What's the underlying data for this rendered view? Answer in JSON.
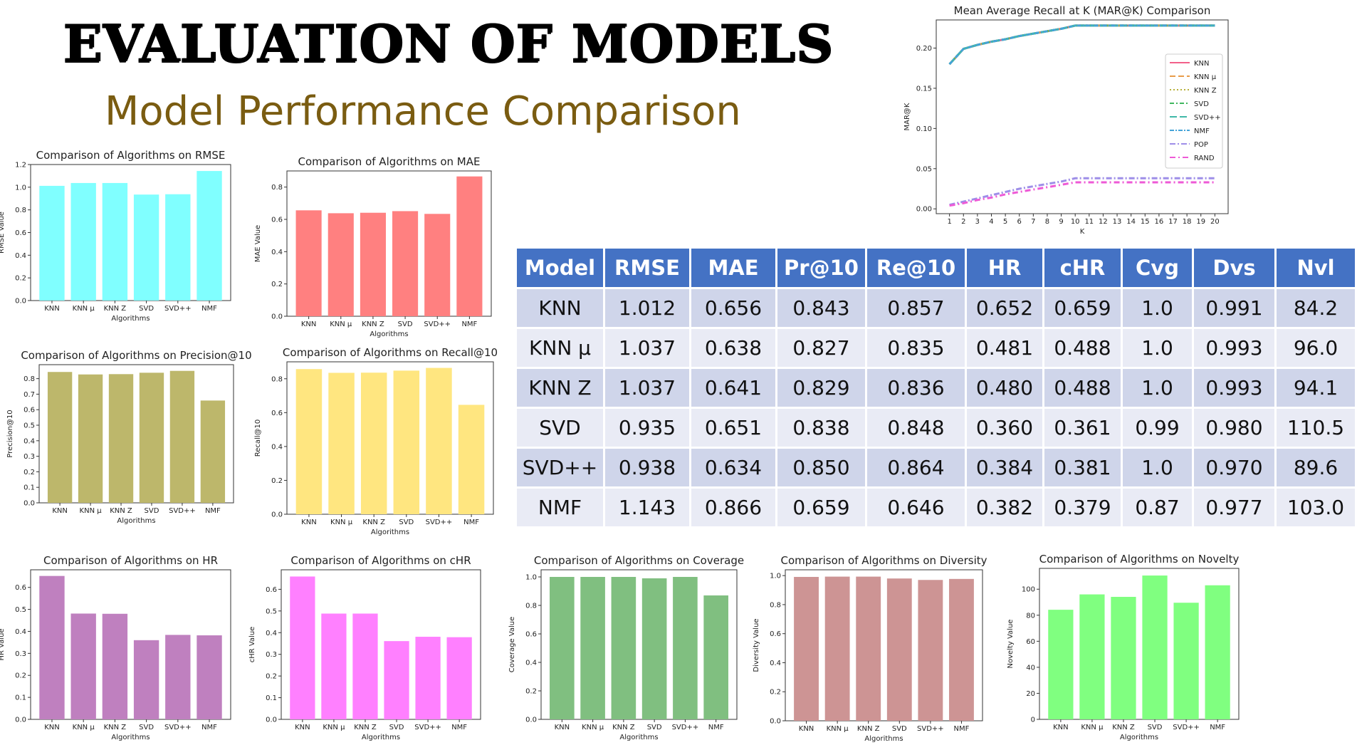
{
  "header": {
    "title": "EVALUATION OF MODELS",
    "subtitle": "Model Performance Comparison"
  },
  "table": {
    "columns": [
      "Model",
      "RMSE",
      "MAE",
      "Pr@10",
      "Re@10",
      "HR",
      "cHR",
      "Cvg",
      "Dvs",
      "Nvl"
    ],
    "rows": [
      [
        "KNN",
        "1.012",
        "0.656",
        "0.843",
        "0.857",
        "0.652",
        "0.659",
        "1.0",
        "0.991",
        "84.2"
      ],
      [
        "KNN μ",
        "1.037",
        "0.638",
        "0.827",
        "0.835",
        "0.481",
        "0.488",
        "1.0",
        "0.993",
        "96.0"
      ],
      [
        "KNN Z",
        "1.037",
        "0.641",
        "0.829",
        "0.836",
        "0.480",
        "0.488",
        "1.0",
        "0.993",
        "94.1"
      ],
      [
        "SVD",
        "0.935",
        "0.651",
        "0.838",
        "0.848",
        "0.360",
        "0.361",
        "0.99",
        "0.980",
        "110.5"
      ],
      [
        "SVD++",
        "0.938",
        "0.634",
        "0.850",
        "0.864",
        "0.384",
        "0.381",
        "1.0",
        "0.970",
        "89.6"
      ],
      [
        "NMF",
        "1.143",
        "0.866",
        "0.659",
        "0.646",
        "0.382",
        "0.379",
        "0.87",
        "0.977",
        "103.0"
      ]
    ],
    "colors": {
      "header_bg": "#4472c4",
      "row_dark": "#cfd5ea",
      "row_light": "#e9ebf5"
    }
  },
  "chart_data": [
    {
      "id": "rmse",
      "type": "bar",
      "title": "Comparison of Algorithms on RMSE",
      "xlabel": "Algorithms",
      "ylabel": "RMSE Value",
      "categories": [
        "KNN",
        "KNN μ",
        "KNN Z",
        "SVD",
        "SVD++",
        "NMF"
      ],
      "values": [
        1.012,
        1.037,
        1.037,
        0.935,
        0.938,
        1.143
      ],
      "ylim": [
        0,
        1.2
      ],
      "yticks": [
        "0.0",
        "0.2",
        "0.4",
        "0.6",
        "0.8",
        "1.0",
        "1.2"
      ],
      "color": "#80ffff"
    },
    {
      "id": "mae",
      "type": "bar",
      "title": "Comparison of Algorithms on MAE",
      "xlabel": "Algorithms",
      "ylabel": "MAE Value",
      "categories": [
        "KNN",
        "KNN μ",
        "KNN Z",
        "SVD",
        "SVD++",
        "NMF"
      ],
      "values": [
        0.656,
        0.638,
        0.641,
        0.651,
        0.634,
        0.866
      ],
      "ylim": [
        0,
        0.9
      ],
      "yticks": [
        "0.0",
        "0.2",
        "0.4",
        "0.6",
        "0.8"
      ],
      "color": "#ff8080"
    },
    {
      "id": "precision",
      "type": "bar",
      "title": "Comparison of Algorithms on Precision@10",
      "xlabel": "Algorithms",
      "ylabel": "Precision@10",
      "categories": [
        "KNN",
        "KNN μ",
        "KNN Z",
        "SVD",
        "SVD++",
        "NMF"
      ],
      "values": [
        0.843,
        0.827,
        0.829,
        0.838,
        0.85,
        0.659
      ],
      "ylim": [
        0,
        0.89
      ],
      "yticks": [
        "0.0",
        "0.1",
        "0.2",
        "0.3",
        "0.4",
        "0.5",
        "0.6",
        "0.7",
        "0.8"
      ],
      "color": "#bdb76b"
    },
    {
      "id": "recall",
      "type": "bar",
      "title": "Comparison of Algorithms on Recall@10",
      "xlabel": "Algorithms",
      "ylabel": "Recall@10",
      "categories": [
        "KNN",
        "KNN μ",
        "KNN Z",
        "SVD",
        "SVD++",
        "NMF"
      ],
      "values": [
        0.857,
        0.835,
        0.836,
        0.848,
        0.864,
        0.646
      ],
      "ylim": [
        0,
        0.9
      ],
      "yticks": [
        "0.0",
        "0.2",
        "0.4",
        "0.6",
        "0.8"
      ],
      "color": "#ffe680"
    },
    {
      "id": "hr",
      "type": "bar",
      "title": "Comparison of Algorithms on HR",
      "xlabel": "Algorithms",
      "ylabel": "HR Value",
      "categories": [
        "KNN",
        "KNN μ",
        "KNN Z",
        "SVD",
        "SVD++",
        "NMF"
      ],
      "values": [
        0.652,
        0.481,
        0.48,
        0.36,
        0.384,
        0.382
      ],
      "ylim": [
        0,
        0.68
      ],
      "yticks": [
        "0.0",
        "0.1",
        "0.2",
        "0.3",
        "0.4",
        "0.5",
        "0.6"
      ],
      "color": "#bf80bf"
    },
    {
      "id": "chr",
      "type": "bar",
      "title": "Comparison of Algorithms on cHR",
      "xlabel": "Algorithms",
      "ylabel": "cHR Value",
      "categories": [
        "KNN",
        "KNN μ",
        "KNN Z",
        "SVD",
        "SVD++",
        "NMF"
      ],
      "values": [
        0.659,
        0.488,
        0.488,
        0.361,
        0.381,
        0.379
      ],
      "ylim": [
        0,
        0.69
      ],
      "yticks": [
        "0.0",
        "0.1",
        "0.2",
        "0.3",
        "0.4",
        "0.5",
        "0.6"
      ],
      "color": "#ff80ff"
    },
    {
      "id": "coverage",
      "type": "bar",
      "title": "Comparison of Algorithms on Coverage",
      "xlabel": "Algorithms",
      "ylabel": "Coverage Value",
      "categories": [
        "KNN",
        "KNN μ",
        "KNN Z",
        "SVD",
        "SVD++",
        "NMF"
      ],
      "values": [
        1.0,
        1.0,
        1.0,
        0.99,
        1.0,
        0.87
      ],
      "ylim": [
        0,
        1.05
      ],
      "yticks": [
        "0.0",
        "0.2",
        "0.4",
        "0.6",
        "0.8",
        "1.0"
      ],
      "color": "#80bf80"
    },
    {
      "id": "diversity",
      "type": "bar",
      "title": "Comparison of Algorithms on Diversity",
      "xlabel": "Algorithms",
      "ylabel": "Diversity Value",
      "categories": [
        "KNN",
        "KNN μ",
        "KNN Z",
        "SVD",
        "SVD++",
        "NMF"
      ],
      "values": [
        0.991,
        0.993,
        0.993,
        0.98,
        0.97,
        0.977
      ],
      "ylim": [
        0,
        1.04
      ],
      "yticks": [
        "0.0",
        "0.2",
        "0.4",
        "0.6",
        "0.8",
        "1.0"
      ],
      "color": "#cd9494"
    },
    {
      "id": "novelty",
      "type": "bar",
      "title": "Comparison of Algorithms on Novelty",
      "xlabel": "Algorithms",
      "ylabel": "Novelty Value",
      "categories": [
        "KNN",
        "KNN μ",
        "KNN Z",
        "SVD",
        "SVD++",
        "NMF"
      ],
      "values": [
        84.2,
        96.0,
        94.1,
        110.5,
        89.6,
        103.0
      ],
      "ylim": [
        0,
        116
      ],
      "yticks": [
        "0",
        "20",
        "40",
        "60",
        "80",
        "100"
      ],
      "color": "#80ff80"
    },
    {
      "id": "marak",
      "type": "line",
      "title": "Mean Average Recall at K (MAR@K) Comparison",
      "xlabel": "K",
      "ylabel": "MAR@K",
      "x": [
        1,
        2,
        3,
        4,
        5,
        6,
        7,
        8,
        9,
        10,
        11,
        12,
        13,
        14,
        15,
        16,
        17,
        18,
        19,
        20
      ],
      "xticks": [
        "1",
        "2",
        "3",
        "4",
        "5",
        "6",
        "7",
        "8",
        "9",
        "10",
        "11",
        "12",
        "13",
        "14",
        "15",
        "16",
        "17",
        "18",
        "19",
        "20"
      ],
      "ylim": [
        -0.006,
        0.235
      ],
      "yticks": [
        "0.00",
        "0.05",
        "0.10",
        "0.15",
        "0.20"
      ],
      "legend": "right",
      "series": [
        {
          "name": "KNN",
          "color": "#f2608a",
          "dash": "",
          "values": [
            0.18,
            0.199,
            0.204,
            0.208,
            0.211,
            0.215,
            0.218,
            0.221,
            0.224,
            0.228,
            0.228,
            0.228,
            0.228,
            0.228,
            0.228,
            0.228,
            0.228,
            0.228,
            0.228,
            0.228
          ]
        },
        {
          "name": "KNN μ",
          "color": "#e89c4a",
          "dash": "8,4",
          "values": [
            0.18,
            0.199,
            0.204,
            0.208,
            0.211,
            0.215,
            0.218,
            0.221,
            0.224,
            0.228,
            0.228,
            0.228,
            0.228,
            0.228,
            0.228,
            0.228,
            0.228,
            0.228,
            0.228,
            0.228
          ]
        },
        {
          "name": "KNN Z",
          "color": "#b7b13a",
          "dash": "2,3",
          "values": [
            0.18,
            0.199,
            0.204,
            0.208,
            0.211,
            0.215,
            0.218,
            0.221,
            0.224,
            0.228,
            0.228,
            0.228,
            0.228,
            0.228,
            0.228,
            0.228,
            0.228,
            0.228,
            0.228,
            0.228
          ]
        },
        {
          "name": "SVD",
          "color": "#3fb65e",
          "dash": "6,3,2,3",
          "values": [
            0.18,
            0.199,
            0.204,
            0.208,
            0.211,
            0.215,
            0.218,
            0.221,
            0.224,
            0.228,
            0.228,
            0.228,
            0.228,
            0.228,
            0.228,
            0.228,
            0.228,
            0.228,
            0.228,
            0.228
          ]
        },
        {
          "name": "SVD++",
          "color": "#40b8a8",
          "dash": "10,4",
          "values": [
            0.18,
            0.199,
            0.204,
            0.208,
            0.211,
            0.215,
            0.218,
            0.221,
            0.224,
            0.228,
            0.228,
            0.228,
            0.228,
            0.228,
            0.228,
            0.228,
            0.228,
            0.228,
            0.228,
            0.228
          ]
        },
        {
          "name": "NMF",
          "color": "#45a3d8",
          "dash": "6,2,2,2",
          "values": [
            0.18,
            0.199,
            0.204,
            0.208,
            0.211,
            0.215,
            0.218,
            0.221,
            0.224,
            0.228,
            0.228,
            0.228,
            0.228,
            0.228,
            0.228,
            0.228,
            0.228,
            0.228,
            0.228,
            0.228
          ]
        },
        {
          "name": "POP",
          "color": "#9e8ee8",
          "dash": "8,3,2,3",
          "values": [
            0.005,
            0.009,
            0.013,
            0.017,
            0.021,
            0.025,
            0.028,
            0.031,
            0.034,
            0.038,
            0.038,
            0.038,
            0.038,
            0.038,
            0.038,
            0.038,
            0.038,
            0.038,
            0.038,
            0.038
          ]
        },
        {
          "name": "RAND",
          "color": "#ee5ad6",
          "dash": "8,4,2,4",
          "values": [
            0.004,
            0.007,
            0.011,
            0.014,
            0.018,
            0.021,
            0.024,
            0.027,
            0.03,
            0.033,
            0.033,
            0.033,
            0.033,
            0.033,
            0.033,
            0.033,
            0.033,
            0.033,
            0.033,
            0.033
          ]
        }
      ]
    }
  ]
}
